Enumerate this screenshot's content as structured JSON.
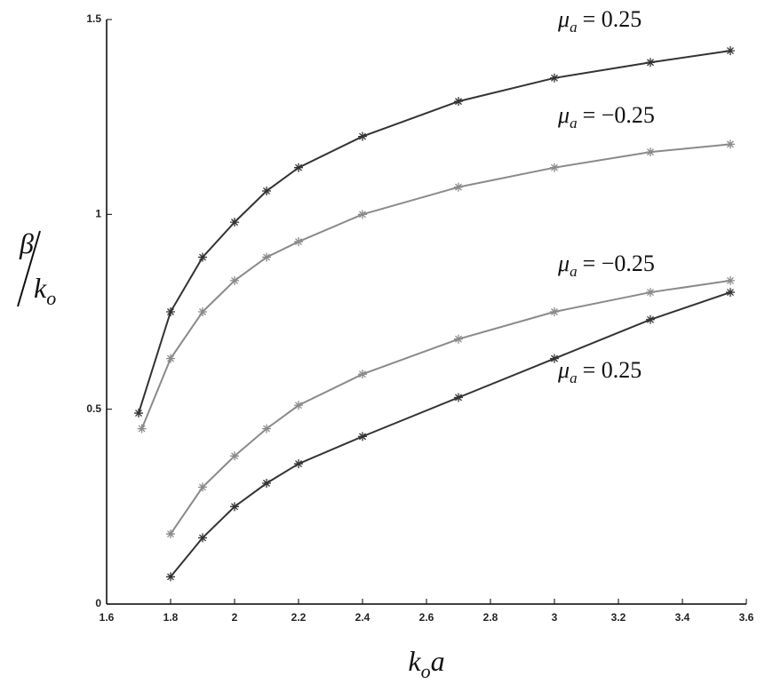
{
  "chart_data": {
    "type": "line",
    "xlabel": {
      "symbol": "k",
      "sub": "o",
      "text": "a"
    },
    "ylabel": {
      "numerator": "β",
      "symbol": "k",
      "sub": "o"
    },
    "xlim": [
      1.6,
      3.6
    ],
    "ylim": [
      0,
      1.5
    ],
    "xticks": [
      1.6,
      1.8,
      2,
      2.2,
      2.4,
      2.6,
      2.8,
      3,
      3.2,
      3.4,
      3.6
    ],
    "yticks": [
      0,
      0.5,
      1,
      1.5
    ],
    "series": [
      {
        "label": {
          "symbol": "μ",
          "sub": "a",
          "text": "= 0.25"
        },
        "color": "#333333",
        "x": [
          1.7,
          1.8,
          1.9,
          2.0,
          2.1,
          2.2,
          2.4,
          2.7,
          3.0,
          3.3,
          3.55
        ],
        "values": [
          0.49,
          0.75,
          0.89,
          0.98,
          1.06,
          1.12,
          1.2,
          1.29,
          1.35,
          1.39,
          1.42
        ]
      },
      {
        "label": {
          "symbol": "μ",
          "sub": "a",
          "text": "= −0.25"
        },
        "color": "#8a8a8a",
        "x": [
          1.71,
          1.8,
          1.9,
          2.0,
          2.1,
          2.2,
          2.4,
          2.7,
          3.0,
          3.3,
          3.55
        ],
        "values": [
          0.45,
          0.63,
          0.75,
          0.83,
          0.89,
          0.93,
          1.0,
          1.07,
          1.12,
          1.16,
          1.18
        ]
      },
      {
        "label": {
          "symbol": "μ",
          "sub": "a",
          "text": "= −0.25"
        },
        "color": "#8a8a8a",
        "x": [
          1.8,
          1.9,
          2.0,
          2.1,
          2.2,
          2.4,
          2.7,
          3.0,
          3.3,
          3.55
        ],
        "values": [
          0.18,
          0.3,
          0.38,
          0.45,
          0.51,
          0.59,
          0.68,
          0.75,
          0.8,
          0.83
        ]
      },
      {
        "label": {
          "symbol": "μ",
          "sub": "a",
          "text": "= 0.25"
        },
        "color": "#333333",
        "x": [
          1.8,
          1.9,
          2.0,
          2.1,
          2.2,
          2.4,
          2.7,
          3.0,
          3.3,
          3.55
        ],
        "values": [
          0.07,
          0.17,
          0.25,
          0.31,
          0.36,
          0.43,
          0.53,
          0.63,
          0.73,
          0.8
        ]
      }
    ]
  }
}
